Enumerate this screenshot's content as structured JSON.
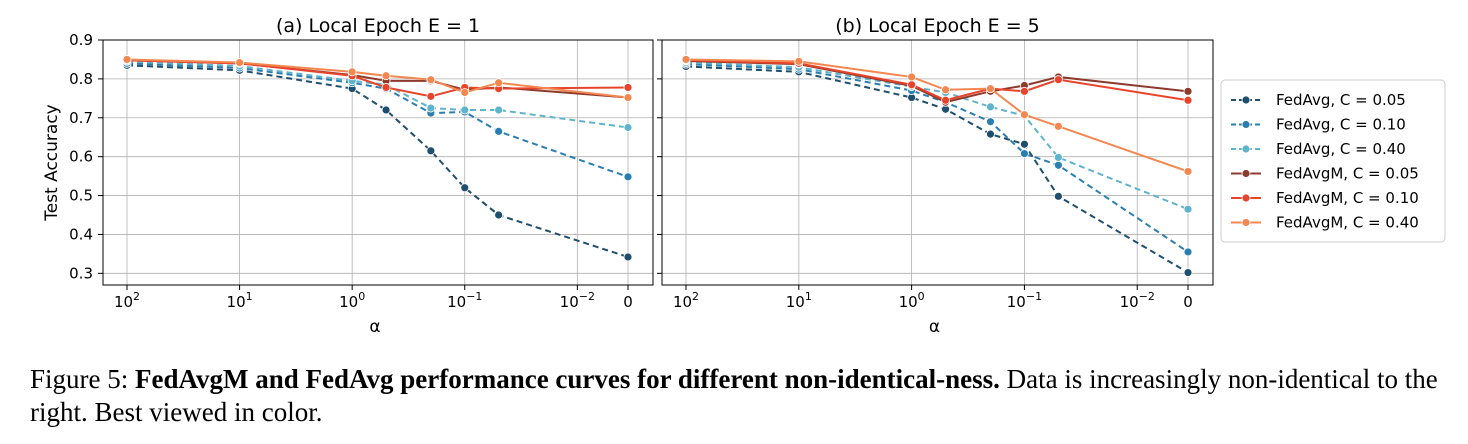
{
  "chart_data": [
    {
      "type": "line",
      "title": "(a) Local Epoch E = 1",
      "xlabel": "α",
      "ylabel": "Test Accuracy",
      "x_scale": "log, reversed, with 0 at far right",
      "x": [
        100,
        10,
        1,
        0.5,
        0.2,
        0.1,
        0.05,
        0
      ],
      "x_ticks": [
        {
          "value": 100,
          "base": "10",
          "exp": "2"
        },
        {
          "value": 10,
          "base": "10",
          "exp": "1"
        },
        {
          "value": 1,
          "base": "10",
          "exp": "0"
        },
        {
          "value": 0.1,
          "base": "10",
          "exp": "−1"
        },
        {
          "value": 0.01,
          "base": "10",
          "exp": "−2"
        },
        {
          "value": 0,
          "base": "0",
          "exp": ""
        }
      ],
      "y_ticks": [
        "0.3",
        "0.4",
        "0.5",
        "0.6",
        "0.7",
        "0.8",
        "0.9"
      ],
      "ylim": [
        0.27,
        0.9
      ],
      "grid": true,
      "series": [
        {
          "name": "FedAvg, C = 0.05",
          "color": "#1f4e6e",
          "style": "dashed",
          "values": [
            0.835,
            0.822,
            0.775,
            0.72,
            0.615,
            0.52,
            0.45,
            0.342
          ]
        },
        {
          "name": "FedAvg, C = 0.10",
          "color": "#2a7fb0",
          "style": "dashed",
          "values": [
            0.84,
            0.828,
            0.79,
            0.775,
            0.712,
            0.715,
            0.665,
            0.548
          ]
        },
        {
          "name": "FedAvg, C = 0.40",
          "color": "#5fb3cc",
          "style": "dashed",
          "values": [
            0.845,
            0.833,
            0.795,
            0.785,
            0.725,
            0.72,
            0.72,
            0.675
          ]
        },
        {
          "name": "FedAvgM, C = 0.05",
          "color": "#8e3a2d",
          "style": "solid",
          "values": [
            0.848,
            0.84,
            0.81,
            0.795,
            0.795,
            0.772,
            0.778,
            0.752
          ]
        },
        {
          "name": "FedAvgM, C = 0.10",
          "color": "#e8432b",
          "style": "solid",
          "values": [
            0.848,
            0.84,
            0.808,
            0.778,
            0.755,
            0.778,
            0.775,
            0.778
          ]
        },
        {
          "name": "FedAvgM, C = 0.40",
          "color": "#f4874f",
          "style": "solid",
          "values": [
            0.85,
            0.842,
            0.818,
            0.808,
            0.798,
            0.765,
            0.79,
            0.752
          ]
        }
      ]
    },
    {
      "type": "line",
      "title": "(b) Local Epoch E = 5",
      "xlabel": "α",
      "ylabel": "",
      "x_scale": "log, reversed, with 0 at far right",
      "x": [
        100,
        10,
        1,
        0.5,
        0.2,
        0.1,
        0.05,
        0
      ],
      "x_ticks": [
        {
          "value": 100,
          "base": "10",
          "exp": "2"
        },
        {
          "value": 10,
          "base": "10",
          "exp": "1"
        },
        {
          "value": 1,
          "base": "10",
          "exp": "0"
        },
        {
          "value": 0.1,
          "base": "10",
          "exp": "−1"
        },
        {
          "value": 0.01,
          "base": "10",
          "exp": "−2"
        },
        {
          "value": 0,
          "base": "0",
          "exp": ""
        }
      ],
      "ylim": [
        0.27,
        0.9
      ],
      "grid": true,
      "series": [
        {
          "name": "FedAvg, C = 0.05",
          "color": "#1f4e6e",
          "style": "dashed",
          "values": [
            0.832,
            0.818,
            0.752,
            0.722,
            0.658,
            0.632,
            0.498,
            0.302
          ]
        },
        {
          "name": "FedAvg, C = 0.10",
          "color": "#2a7fb0",
          "style": "dashed",
          "values": [
            0.838,
            0.825,
            0.77,
            0.74,
            0.69,
            0.608,
            0.578,
            0.355
          ]
        },
        {
          "name": "FedAvg, C = 0.40",
          "color": "#5fb3cc",
          "style": "dashed",
          "values": [
            0.842,
            0.83,
            0.78,
            0.765,
            0.728,
            0.705,
            0.598,
            0.465
          ]
        },
        {
          "name": "FedAvgM, C = 0.05",
          "color": "#8e3a2d",
          "style": "solid",
          "values": [
            0.846,
            0.838,
            0.782,
            0.74,
            0.768,
            0.783,
            0.805,
            0.768
          ]
        },
        {
          "name": "FedAvgM, C = 0.10",
          "color": "#e8432b",
          "style": "solid",
          "values": [
            0.848,
            0.84,
            0.785,
            0.745,
            0.775,
            0.768,
            0.798,
            0.745
          ]
        },
        {
          "name": "FedAvgM, C = 0.40",
          "color": "#f4874f",
          "style": "solid",
          "values": [
            0.85,
            0.845,
            0.805,
            0.772,
            0.775,
            0.708,
            0.678,
            0.562
          ]
        }
      ]
    }
  ],
  "caption": {
    "prefix": "Figure 5: ",
    "bold": "FedAvgM and FedAvg performance curves for different non-identical-ness.",
    "rest": " Data is increasingly non-identical to the right. Best viewed in color."
  }
}
